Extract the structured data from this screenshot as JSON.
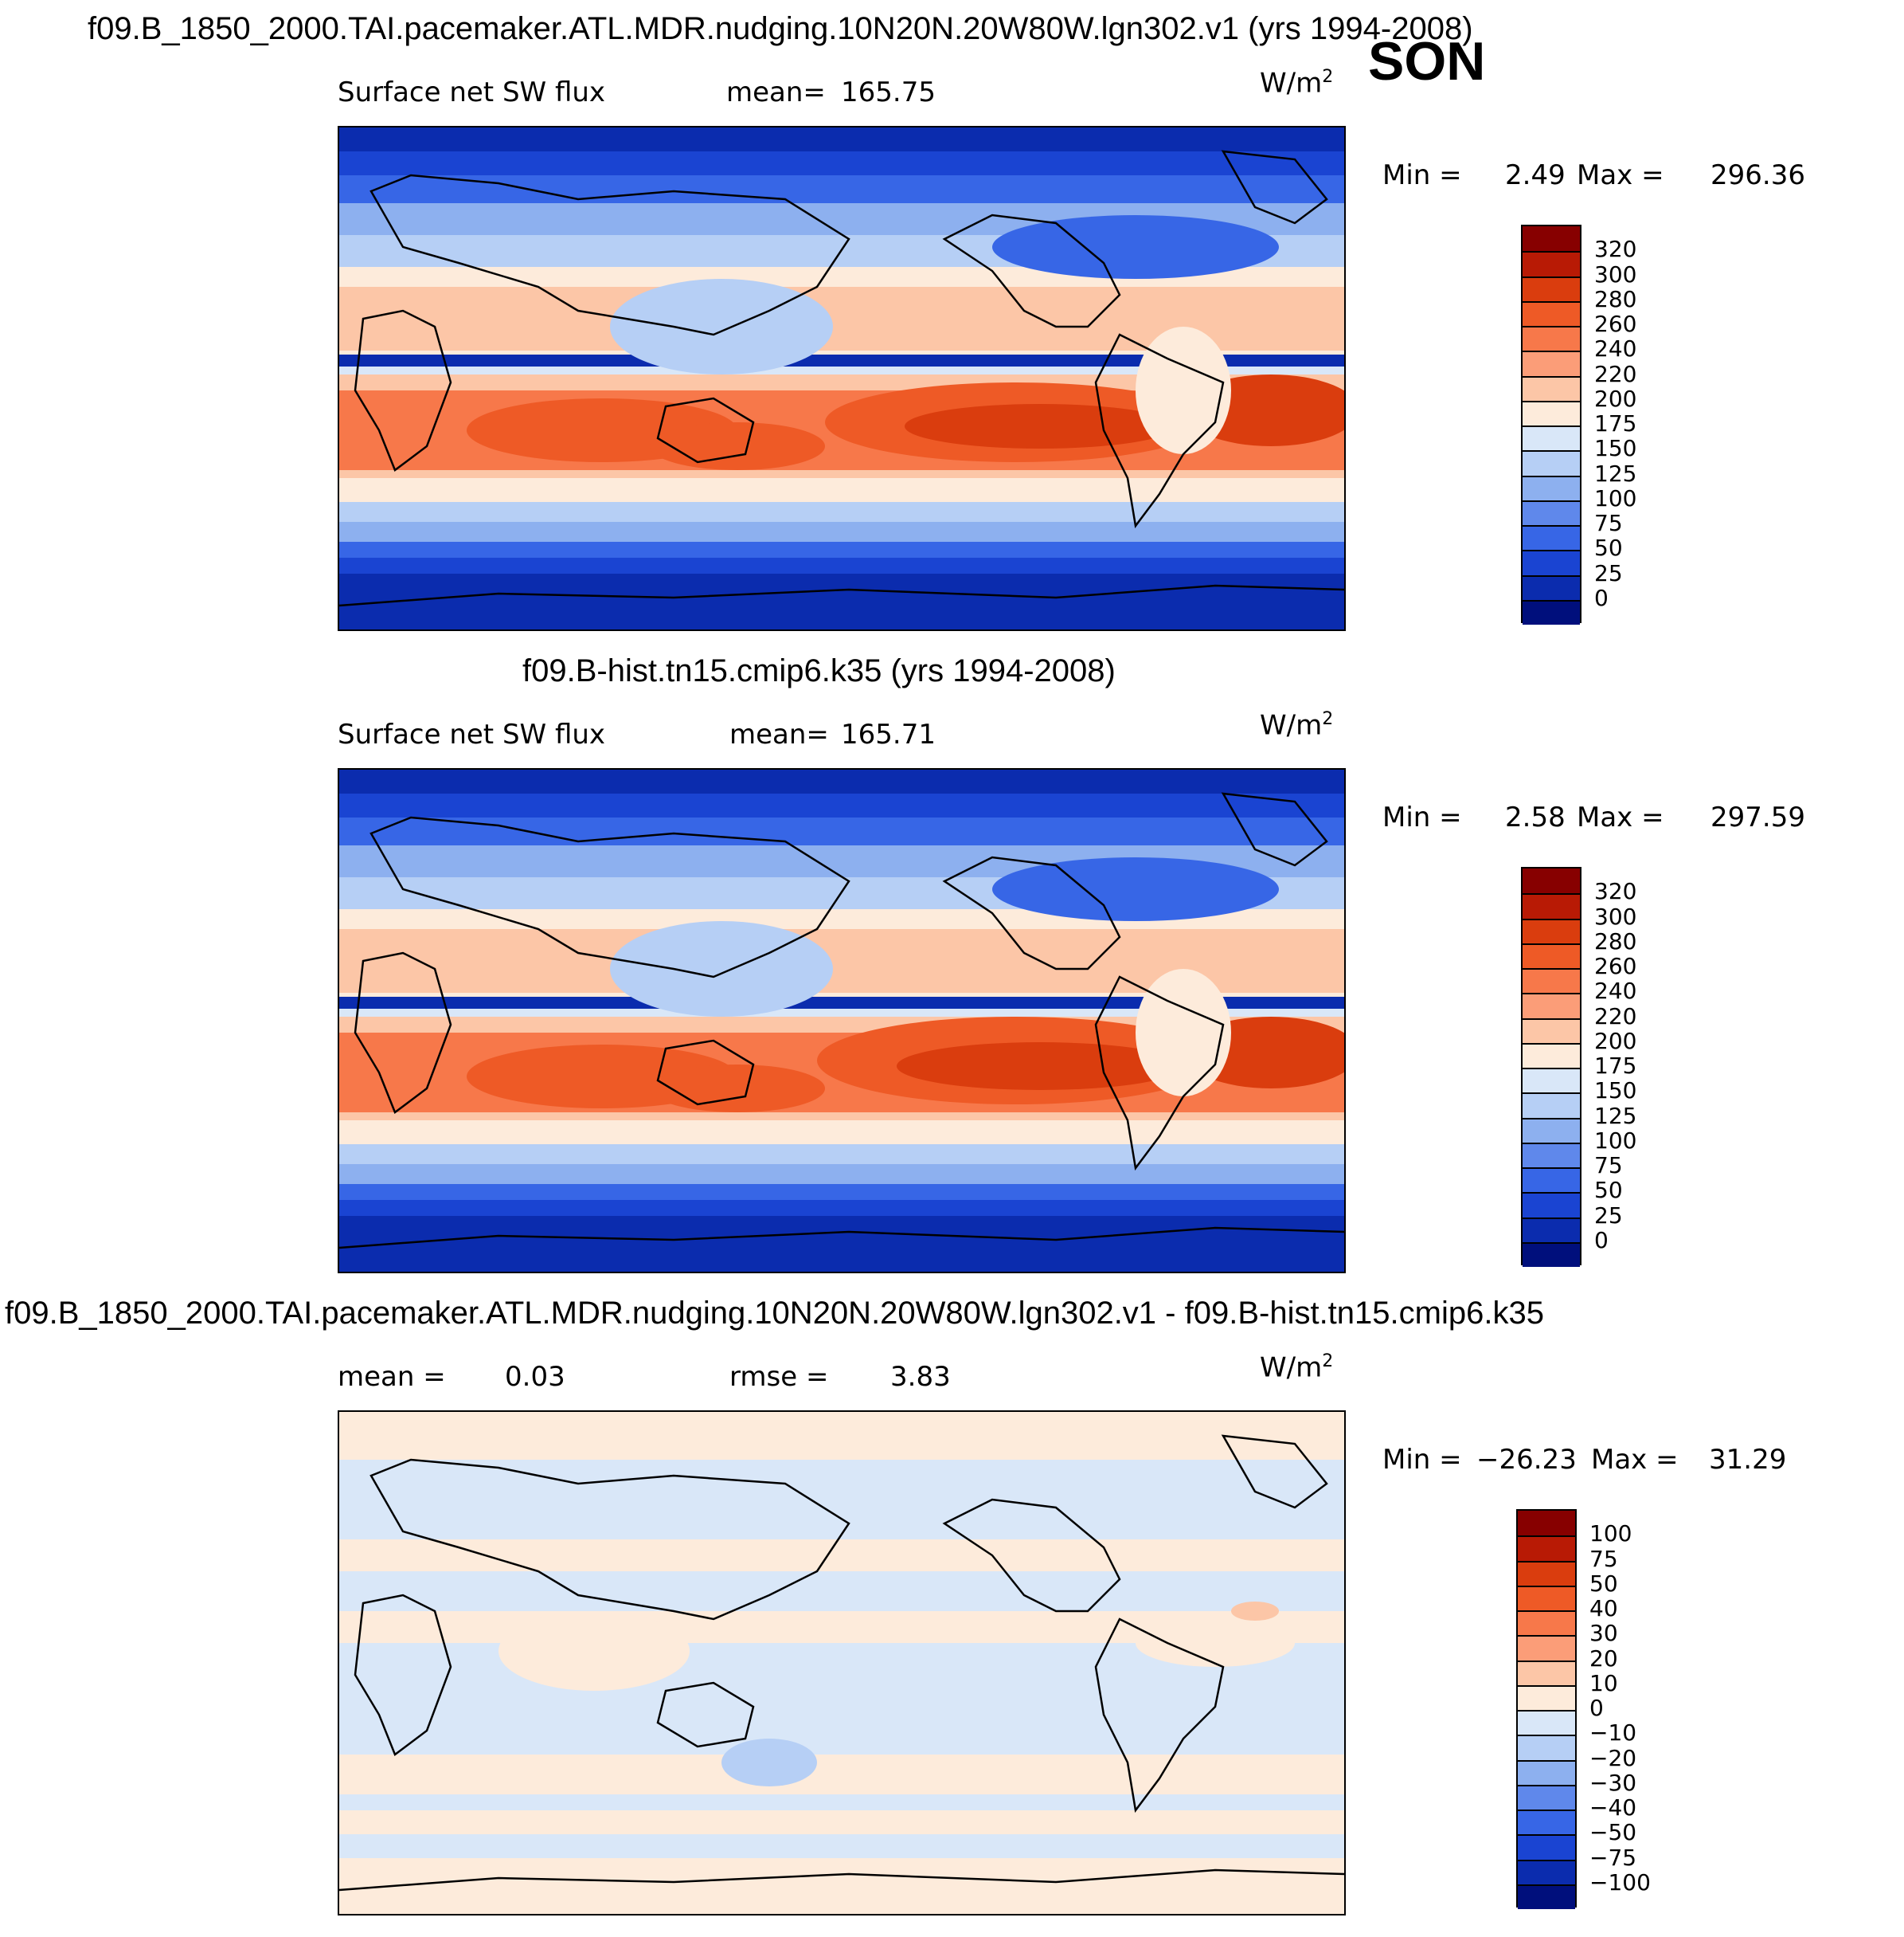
{
  "season": "SON",
  "chart_data": [
    {
      "type": "heatmap",
      "title": "f09.B_1850_2000.TAI.pacemaker.ATL.MDR.nudging.10N20N.20W80W.lgn302.v1 (yrs 1994-2008)",
      "variable": "Surface net SW flux",
      "mean_label": "mean=",
      "mean": "165.75",
      "units": "W/m",
      "units_exp": "2",
      "stats": {
        "min_label": "Min =",
        "min": "2.49",
        "max_label": "Max =",
        "max": "296.36"
      },
      "colorbar_levels": [
        "320",
        "300",
        "280",
        "260",
        "240",
        "220",
        "200",
        "175",
        "150",
        "125",
        "100",
        "75",
        "50",
        "25",
        "0"
      ],
      "colorbar_colors": [
        "#870000",
        "#b81a05",
        "#da3d0e",
        "#ee5a26",
        "#f7784a",
        "#fb9d78",
        "#fcc6a7",
        "#fdebdb",
        "#d9e7f8",
        "#b6cff5",
        "#8db0ef",
        "#5f88eb",
        "#3766e6",
        "#1a44d2",
        "#0b2cae",
        "#000f7c"
      ]
    },
    {
      "type": "heatmap",
      "title": "f09.B-hist.tn15.cmip6.k35 (yrs 1994-2008)",
      "variable": "Surface net SW flux",
      "mean_label": "mean=",
      "mean": "165.71",
      "units": "W/m",
      "units_exp": "2",
      "stats": {
        "min_label": "Min =",
        "min": "2.58",
        "max_label": "Max =",
        "max": "297.59"
      },
      "colorbar_levels": [
        "320",
        "300",
        "280",
        "260",
        "240",
        "220",
        "200",
        "175",
        "150",
        "125",
        "100",
        "75",
        "50",
        "25",
        "0"
      ],
      "colorbar_colors": [
        "#870000",
        "#b81a05",
        "#da3d0e",
        "#ee5a26",
        "#f7784a",
        "#fb9d78",
        "#fcc6a7",
        "#fdebdb",
        "#d9e7f8",
        "#b6cff5",
        "#8db0ef",
        "#5f88eb",
        "#3766e6",
        "#1a44d2",
        "#0b2cae",
        "#000f7c"
      ]
    },
    {
      "type": "heatmap",
      "title": "f09.B_1850_2000.TAI.pacemaker.ATL.MDR.nudging.10N20N.20W80W.lgn302.v1 - f09.B-hist.tn15.cmip6.k35",
      "mean_label": "mean =",
      "mean": "0.03",
      "rmse_label": "rmse =",
      "rmse": "3.83",
      "units": "W/m",
      "units_exp": "2",
      "stats": {
        "min_label": "Min =",
        "min": "−26.23",
        "max_label": "Max =",
        "max": "31.29"
      },
      "colorbar_levels": [
        "100",
        "75",
        "50",
        "40",
        "30",
        "20",
        "10",
        "0",
        "−10",
        "−20",
        "−30",
        "−40",
        "−50",
        "−75",
        "−100"
      ],
      "colorbar_colors": [
        "#870000",
        "#b81a05",
        "#da3d0e",
        "#ee5a26",
        "#f7784a",
        "#fb9d78",
        "#fcc6a7",
        "#fdebdb",
        "#d9e7f8",
        "#b6cff5",
        "#8db0ef",
        "#5f88eb",
        "#3766e6",
        "#1a44d2",
        "#0b2cae",
        "#000f7c"
      ]
    }
  ],
  "palette": {
    "deep_blue": "#0b2cae",
    "blue": "#1a44d2",
    "mid_blue": "#3766e6",
    "light_blue": "#8db0ef",
    "pale_blue": "#d9e7f8",
    "cream": "#fdebdb",
    "peach": "#fcc6a7",
    "orange": "#f7784a",
    "red_orange": "#ee5a26",
    "red": "#da3d0e"
  }
}
